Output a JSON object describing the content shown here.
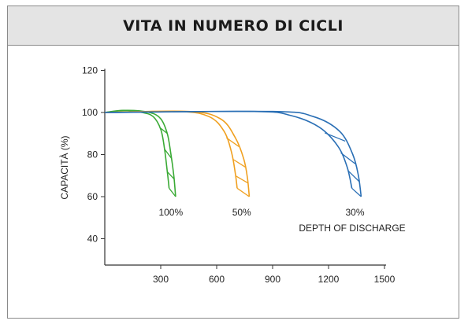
{
  "header": {
    "title": "VITA IN NUMERO DI CICLI"
  },
  "chart_data": {
    "type": "line",
    "title": "VITA IN NUMERO DI CICLI",
    "xlabel": "",
    "ylabel": "CAPACITÀ (%)",
    "xlim": [
      0,
      1500
    ],
    "ylim": [
      30,
      120
    ],
    "x_ticks": [
      "300",
      "600",
      "900",
      "1200",
      "1500"
    ],
    "y_ticks": [
      "120",
      "100",
      "80",
      "60",
      "40"
    ],
    "annotation": "DEPTH OF DISCHARGE",
    "series": [
      {
        "name": "100%",
        "color": "#3aaa35",
        "upper": [
          [
            0,
            100
          ],
          [
            100,
            101
          ],
          [
            200,
            100
          ],
          [
            260,
            98
          ],
          [
            300,
            92
          ],
          [
            320,
            83
          ],
          [
            335,
            72
          ],
          [
            345,
            64
          ]
        ],
        "lower": [
          [
            0,
            100
          ],
          [
            120,
            101
          ],
          [
            240,
            100
          ],
          [
            300,
            97
          ],
          [
            335,
            90
          ],
          [
            355,
            80
          ],
          [
            370,
            70
          ],
          [
            380,
            60
          ]
        ]
      },
      {
        "name": "50%",
        "color": "#f0a020",
        "upper": [
          [
            0,
            100
          ],
          [
            400,
            100.5
          ],
          [
            560,
            98
          ],
          [
            640,
            91
          ],
          [
            680,
            81
          ],
          [
            700,
            71
          ],
          [
            710,
            64
          ]
        ],
        "lower": [
          [
            0,
            100
          ],
          [
            450,
            100.5
          ],
          [
            620,
            97
          ],
          [
            700,
            88
          ],
          [
            745,
            78
          ],
          [
            765,
            69
          ],
          [
            775,
            60
          ]
        ]
      },
      {
        "name": "30%",
        "color": "#2a6fb5",
        "upper": [
          [
            0,
            100
          ],
          [
            800,
            100.5
          ],
          [
            1000,
            98.5
          ],
          [
            1150,
            93
          ],
          [
            1250,
            84
          ],
          [
            1300,
            74
          ],
          [
            1325,
            64
          ]
        ],
        "lower": [
          [
            0,
            100
          ],
          [
            900,
            100.5
          ],
          [
            1120,
            98
          ],
          [
            1260,
            91
          ],
          [
            1330,
            80
          ],
          [
            1360,
            70
          ],
          [
            1375,
            60
          ]
        ]
      }
    ],
    "grid": false
  }
}
